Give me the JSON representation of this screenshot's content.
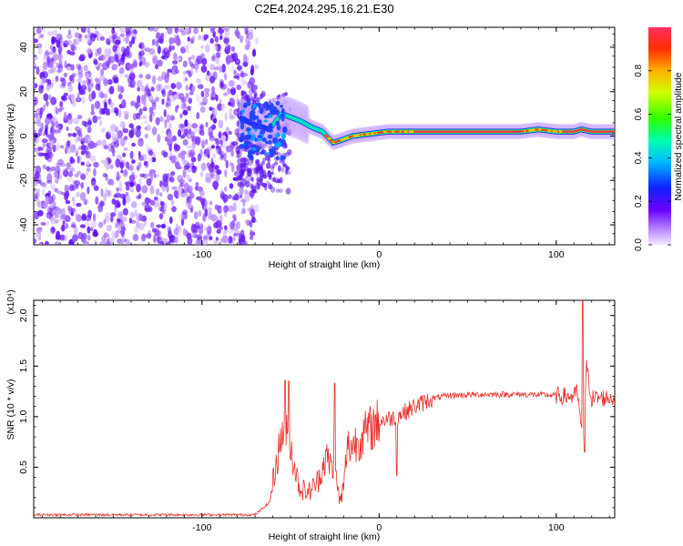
{
  "title": "C2E4.2024.295.16.21.E30",
  "chart_data": [
    {
      "type": "heatmap",
      "xlabel": "Height of straight line (km)",
      "ylabel": "Frequency (Hz)",
      "xlim": [
        -195,
        133
      ],
      "ylim": [
        -49,
        49
      ],
      "x_ticks": [
        -100,
        0,
        100
      ],
      "y_ticks": [
        -40,
        -20,
        0,
        20,
        40
      ],
      "colorbar": {
        "label": "Normalized spectral amplitude",
        "range": [
          0,
          1
        ],
        "ticks": [
          0.0,
          0.2,
          0.4,
          0.6,
          0.8
        ]
      },
      "signal_ridge": {
        "x": [
          -78,
          -70,
          -62,
          -55,
          -45,
          -38,
          -32,
          -26,
          -22,
          -15,
          -5,
          5,
          20,
          40,
          60,
          80,
          90,
          100,
          110,
          114,
          120,
          133
        ],
        "freq": [
          8,
          5,
          3,
          10,
          7,
          4,
          2,
          -3,
          -2,
          0,
          1,
          2,
          2,
          2,
          2,
          2,
          3,
          2,
          2,
          3,
          2,
          2
        ]
      },
      "noise_region": {
        "x_range": [
          -195,
          -75
        ],
        "freq_range": [
          -49,
          49
        ]
      }
    },
    {
      "type": "line",
      "xlabel": "Height of straight line (km)",
      "ylabel": "SNR (10 * v/v)",
      "y_multiplier": "(x10⁴)",
      "xlim": [
        -195,
        133
      ],
      "ylim": [
        0,
        2.15
      ],
      "x_ticks": [
        -100,
        0,
        100
      ],
      "y_ticks": [
        0.5,
        1.0,
        1.5,
        2.0
      ],
      "color": "#e8302a",
      "envelope": {
        "x": [
          -195,
          -70,
          -62,
          -58,
          -54,
          -50,
          -45,
          -40,
          -35,
          -30,
          -25,
          -22,
          -20,
          -18,
          -15,
          -10,
          -5,
          0,
          5,
          10,
          15,
          20,
          30,
          40,
          60,
          80,
          100,
          105,
          110,
          112,
          115,
          117,
          120,
          133
        ],
        "y": [
          0.03,
          0.03,
          0.15,
          0.55,
          0.9,
          0.7,
          0.3,
          0.25,
          0.35,
          0.6,
          0.45,
          0.15,
          0.3,
          0.7,
          0.72,
          0.8,
          0.88,
          0.95,
          0.98,
          1.0,
          1.05,
          1.1,
          1.18,
          1.21,
          1.22,
          1.22,
          1.21,
          1.2,
          1.2,
          1.25,
          0.7,
          1.5,
          1.18,
          1.19
        ]
      },
      "spikes": [
        {
          "x": -53,
          "y": 1.36
        },
        {
          "x": -51,
          "y": 1.35
        },
        {
          "x": -25,
          "y": 1.33
        },
        {
          "x": 10,
          "y": 0.42
        },
        {
          "x": 115,
          "y": 2.15
        },
        {
          "x": 116,
          "y": 0.65
        }
      ]
    }
  ]
}
